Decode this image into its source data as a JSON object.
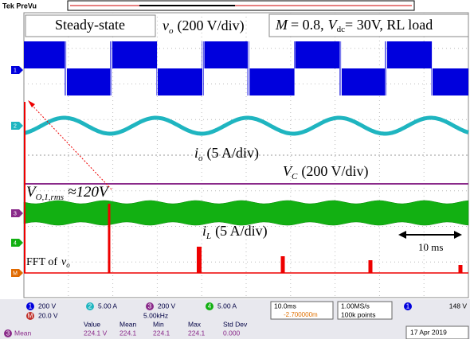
{
  "header": {
    "title": "Tek PreVu"
  },
  "annotations": {
    "steady_state": "Steady-state",
    "vo": {
      "symbol": "v",
      "sub": "o",
      "scale": "(200 V/div)"
    },
    "conditions": {
      "m": "M",
      "m_value": "= 0.8,",
      "v": "V",
      "v_sub": "dc",
      "v_value": "= 30V, RL load"
    },
    "io": {
      "symbol": "i",
      "sub": "o",
      "scale": "(5 A/div)"
    },
    "vc": {
      "symbol": "V",
      "sub": "C",
      "scale": "(200 V/div)"
    },
    "vo_rms": {
      "symbol": "V",
      "sub": "O,1,rms",
      "value": "≈120V"
    },
    "il": {
      "symbol": "i",
      "sub": "L",
      "scale": "(5 A/div)"
    },
    "time_span": "10 ms",
    "fft": {
      "text": "FFT of",
      "symbol": "v",
      "sub": "o"
    }
  },
  "markers": [
    "1",
    "2",
    "3",
    "4",
    "M"
  ],
  "status": {
    "channels": [
      {
        "n": "1",
        "scale": "200 V"
      },
      {
        "n": "2",
        "scale": "5.00 A"
      },
      {
        "n": "3",
        "scale": "200 V"
      },
      {
        "n": "4",
        "scale": "5.00 A"
      }
    ],
    "math": {
      "n": "M",
      "scale": "20.0 V",
      "freq": "5.00kHz"
    },
    "timebase": "10.0ms",
    "trigger_pos": "-2.700000m",
    "sample_rate": "1.00MS/s",
    "points": "100k points",
    "trigger": {
      "n": "1",
      "level": "148 V"
    },
    "measure": {
      "headers": [
        "Value",
        "Mean",
        "Min",
        "Max",
        "Std Dev"
      ],
      "row_channel": "3",
      "row_label": "Mean",
      "values": [
        "224.1 V",
        "224.1",
        "224.1",
        "224.1",
        "0.000"
      ]
    },
    "date": "17 Apr 2019"
  }
}
